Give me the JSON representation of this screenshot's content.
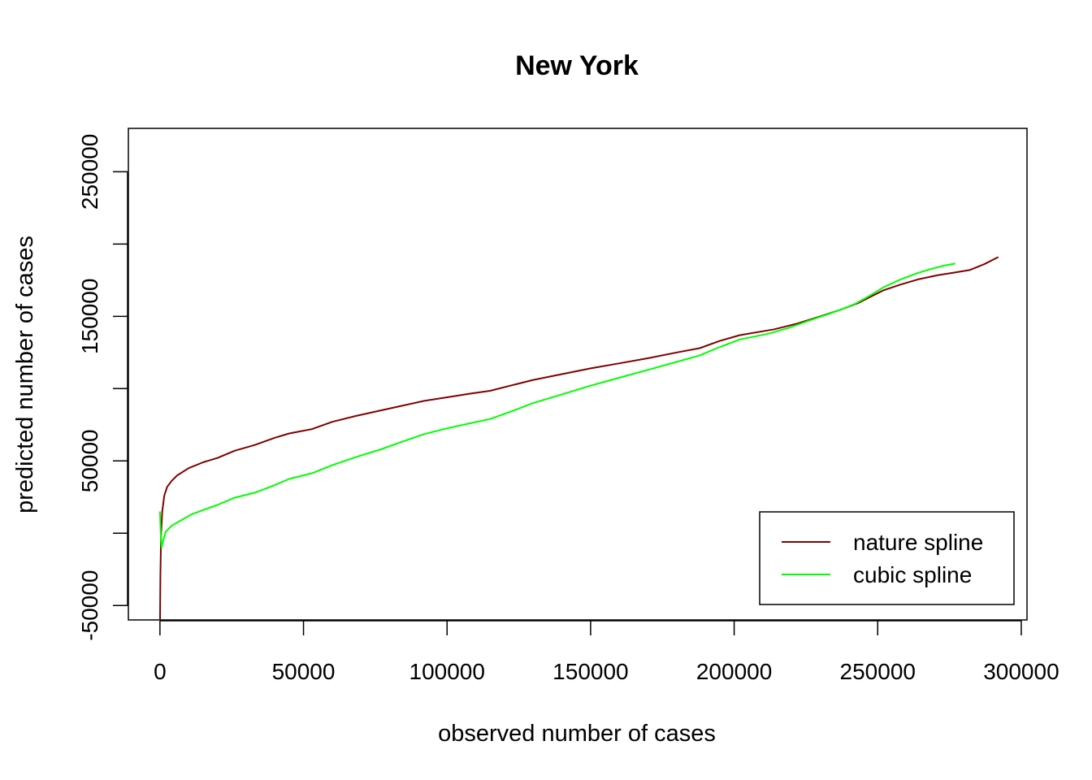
{
  "chart_data": {
    "type": "line",
    "title": "New York",
    "xlabel": "observed number of cases",
    "ylabel": "predicted number of cases",
    "xlim": [
      -11000,
      302000
    ],
    "ylim": [
      -60000,
      280000
    ],
    "x_ticks": [
      0,
      50000,
      100000,
      150000,
      200000,
      250000,
      300000
    ],
    "x_tick_labels": [
      "0",
      "50000",
      "100000",
      "150000",
      "200000",
      "250000",
      "300000"
    ],
    "y_ticks": [
      -50000,
      0,
      50000,
      100000,
      150000,
      200000,
      250000
    ],
    "y_tick_labels": [
      "-50000",
      "",
      "50000",
      "",
      "150000",
      "",
      "250000"
    ],
    "legend_position": "bottom-right",
    "series": [
      {
        "name": "nature spline",
        "color": "#800000",
        "points": [
          [
            0,
            -66000
          ],
          [
            150,
            -30000
          ],
          [
            400,
            0
          ],
          [
            800,
            15000
          ],
          [
            1500,
            26000
          ],
          [
            2500,
            32000
          ],
          [
            4000,
            36000
          ],
          [
            6000,
            40000
          ],
          [
            10000,
            45000
          ],
          [
            15000,
            49000
          ],
          [
            20000,
            52000
          ],
          [
            26000,
            57000
          ],
          [
            33000,
            61000
          ],
          [
            40000,
            66000
          ],
          [
            45000,
            69000
          ],
          [
            53000,
            72000
          ],
          [
            60000,
            77000
          ],
          [
            68000,
            81000
          ],
          [
            76000,
            84500
          ],
          [
            84000,
            88000
          ],
          [
            92000,
            91500
          ],
          [
            100000,
            94000
          ],
          [
            108000,
            96500
          ],
          [
            115000,
            98500
          ],
          [
            122000,
            102000
          ],
          [
            130000,
            106000
          ],
          [
            140000,
            110000
          ],
          [
            150000,
            114000
          ],
          [
            160000,
            117500
          ],
          [
            170000,
            121000
          ],
          [
            180000,
            125000
          ],
          [
            188000,
            128000
          ],
          [
            195000,
            133000
          ],
          [
            202000,
            137000
          ],
          [
            214000,
            141000
          ],
          [
            222000,
            145000
          ],
          [
            230000,
            150000
          ],
          [
            237000,
            154500
          ],
          [
            243000,
            159000
          ],
          [
            248000,
            164000
          ],
          [
            252000,
            168000
          ],
          [
            258000,
            172000
          ],
          [
            264000,
            175500
          ],
          [
            271000,
            178500
          ],
          [
            276000,
            180000
          ],
          [
            282000,
            182000
          ],
          [
            287000,
            186000
          ],
          [
            292000,
            191000
          ]
        ]
      },
      {
        "name": "cubic spline",
        "color": "#00ff00",
        "points": [
          [
            0,
            15000
          ],
          [
            250,
            0
          ],
          [
            600,
            -10000
          ],
          [
            1000,
            -6000
          ],
          [
            2000,
            1000
          ],
          [
            4000,
            5000
          ],
          [
            7000,
            8500
          ],
          [
            11000,
            13000
          ],
          [
            15000,
            16000
          ],
          [
            20000,
            19500
          ],
          [
            26000,
            24500
          ],
          [
            33000,
            28000
          ],
          [
            39000,
            32500
          ],
          [
            45000,
            37500
          ],
          [
            53000,
            41500
          ],
          [
            60000,
            47000
          ],
          [
            68000,
            52500
          ],
          [
            77000,
            58000
          ],
          [
            84000,
            63000
          ],
          [
            92000,
            68500
          ],
          [
            100000,
            72500
          ],
          [
            108000,
            76000
          ],
          [
            115000,
            79000
          ],
          [
            122000,
            84000
          ],
          [
            130000,
            90000
          ],
          [
            140000,
            96000
          ],
          [
            150000,
            102000
          ],
          [
            160000,
            107500
          ],
          [
            170000,
            113000
          ],
          [
            180000,
            118500
          ],
          [
            188000,
            123000
          ],
          [
            194000,
            128000
          ],
          [
            202000,
            134000
          ],
          [
            212000,
            138000
          ],
          [
            219000,
            142000
          ],
          [
            226000,
            147000
          ],
          [
            232000,
            151000
          ],
          [
            237000,
            154500
          ],
          [
            242000,
            158500
          ],
          [
            247000,
            164000
          ],
          [
            252000,
            170000
          ],
          [
            258000,
            175500
          ],
          [
            264000,
            180000
          ],
          [
            270000,
            183500
          ],
          [
            273000,
            185000
          ],
          [
            277000,
            186500
          ]
        ]
      }
    ]
  }
}
